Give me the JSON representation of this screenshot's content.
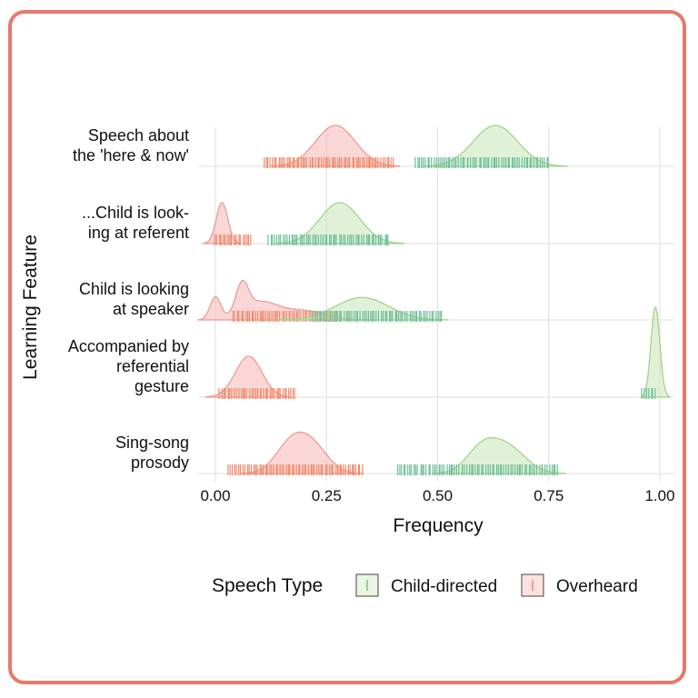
{
  "colors": {
    "frame": "#e8786a",
    "child_fill": "#c9e6b8",
    "child_line": "#9fd58a",
    "child_rug": "#6fbf9b",
    "over_fill": "#f4b6b4",
    "over_line": "#ee9a96",
    "over_rug": "#ef8a6a",
    "grid": "#e3e3e3"
  },
  "chart_data": {
    "type": "ridgeline",
    "xlabel": "Frequency",
    "ylabel": "Learning Feature",
    "xlim": [
      0,
      1
    ],
    "x_ticks": [
      0,
      0.25,
      0.5,
      0.75,
      1.0
    ],
    "x_tick_labels": [
      "0.00",
      "0.25",
      "0.50",
      "0.75",
      "1.00"
    ],
    "grid": true,
    "legend": {
      "title": "Speech Type",
      "position": "bottom",
      "entries": [
        "Child-directed",
        "Overheard"
      ]
    },
    "categories": [
      {
        "label_lines": [
          "Speech about",
          "the 'here & now'"
        ],
        "series": [
          {
            "name": "Overheard",
            "components": [
              [
                0.27,
                0.045,
                1.0
              ]
            ],
            "rug_range": [
              0.11,
              0.4
            ]
          },
          {
            "name": "Child-directed",
            "components": [
              [
                0.63,
                0.05,
                1.0
              ]
            ],
            "rug_range": [
              0.45,
              0.75
            ]
          }
        ]
      },
      {
        "label_lines": [
          "...Child is look-",
          "ing at referent"
        ],
        "series": [
          {
            "name": "Overheard",
            "components": [
              [
                0.015,
                0.013,
                1.0
              ]
            ],
            "rug_range": [
              0.0,
              0.08
            ]
          },
          {
            "name": "Child-directed",
            "components": [
              [
                0.28,
                0.045,
                1.0
              ]
            ],
            "rug_range": [
              0.12,
              0.39
            ]
          }
        ]
      },
      {
        "label_lines": [
          "Child is looking",
          "at speaker"
        ],
        "series": [
          {
            "name": "Overheard",
            "components": [
              [
                0.0,
                0.012,
                0.55
              ],
              [
                0.06,
                0.014,
                0.7
              ],
              [
                0.1,
                0.04,
                0.42
              ],
              [
                0.2,
                0.05,
                0.22
              ]
            ],
            "rug_range": [
              0.04,
              0.28
            ]
          },
          {
            "name": "Child-directed",
            "components": [
              [
                0.33,
                0.06,
                0.55
              ]
            ],
            "rug_range": [
              0.22,
              0.51
            ]
          }
        ]
      },
      {
        "label_lines": [
          "Accompanied by",
          "referential",
          "gesture"
        ],
        "series": [
          {
            "name": "Overheard",
            "components": [
              [
                0.075,
                0.03,
                1.0
              ]
            ],
            "rug_range": [
              0.01,
              0.18
            ]
          },
          {
            "name": "Child-directed",
            "components": [
              [
                0.99,
                0.01,
                2.2
              ]
            ],
            "rug_range": [
              0.96,
              0.99
            ]
          }
        ]
      },
      {
        "label_lines": [
          "Sing-song",
          "prosody"
        ],
        "series": [
          {
            "name": "Overheard",
            "components": [
              [
                0.17,
                0.035,
                0.7
              ],
              [
                0.22,
                0.035,
                0.6
              ]
            ],
            "rug_range": [
              0.03,
              0.33
            ]
          },
          {
            "name": "Child-directed",
            "components": [
              [
                0.6,
                0.035,
                0.6
              ],
              [
                0.66,
                0.04,
                0.6
              ]
            ],
            "rug_range": [
              0.41,
              0.77
            ]
          }
        ]
      }
    ]
  }
}
